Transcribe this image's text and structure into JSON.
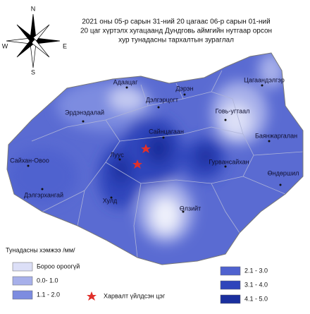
{
  "title": {
    "lines": [
      "2021 оны 05-р сарын 31-ний 20 цагаас 06-р сарын 01-ний",
      "20 цаг хүртэлх хугацаанд Дундговь аймгийн нутгаар орсон",
      "хур тунадасны тархалтын зураглал"
    ]
  },
  "compass": {
    "north": "N",
    "east": "E",
    "south": "S",
    "west": "W"
  },
  "places": [
    "Адаацаг",
    "Дэрэн",
    "Цагаандэлгэр",
    "Дэлгэрцогт",
    "Эрдэнэдалай",
    "Говь-угтаал",
    "Сайнцагаан",
    "Баянжаргалан",
    "Сайхан-Овоо",
    "Луус",
    "Гурвансайхан",
    "Өндөршил",
    "Дэлгэрхангай",
    "Хулд",
    "Өлзийт"
  ],
  "legend": {
    "title": "Тунадасны хэмжээ /мм/",
    "items": [
      {
        "label": "Бороо ороогүй",
        "color": "#dcdff7"
      },
      {
        "label": "0.0- 1.0",
        "color": "#a7b0ea"
      },
      {
        "label": "1.1 - 2.0",
        "color": "#7d8ce0"
      },
      {
        "label": "2.1 - 3.0",
        "color": "#4f62cf"
      },
      {
        "label": "3.1 - 4.0",
        "color": "#2f45bb"
      },
      {
        "label": "4.1 - 5.0",
        "color": "#1a2f9e"
      }
    ],
    "star": "Харвалт үйлдсэн цэг"
  }
}
